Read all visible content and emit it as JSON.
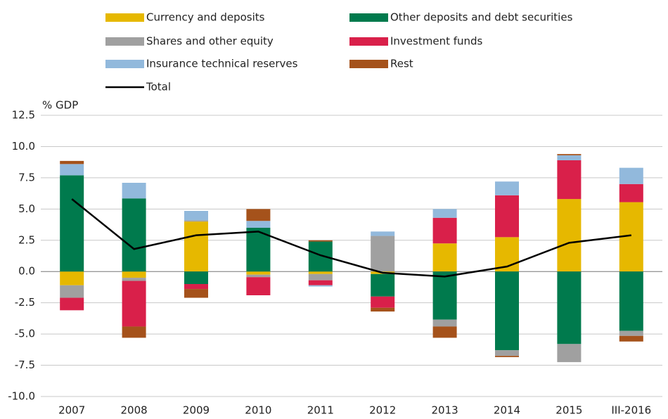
{
  "chart_data": {
    "type": "bar",
    "stacked": true,
    "y_label": "% GDP",
    "categories": [
      "2007",
      "2008",
      "2009",
      "2010",
      "2011",
      "2012",
      "2013",
      "2014",
      "2015",
      "III-2016"
    ],
    "series": [
      {
        "name": "Currency and deposits",
        "color": "#e6b800",
        "values": [
          -1.1,
          -0.5,
          4.0,
          -0.25,
          -0.2,
          -0.2,
          2.25,
          2.75,
          5.8,
          5.55
        ]
      },
      {
        "name": "Other deposits and debt securities",
        "color": "#007a4d",
        "values": [
          7.7,
          5.85,
          -1.0,
          3.5,
          2.4,
          -1.8,
          -3.85,
          -6.3,
          -5.8,
          -4.75
        ]
      },
      {
        "name": "Shares and other equity",
        "color": "#a0a0a0",
        "values": [
          -1.0,
          -0.25,
          0.1,
          -0.2,
          -0.5,
          2.85,
          -0.55,
          -0.45,
          -1.45,
          -0.4
        ]
      },
      {
        "name": "Investment funds",
        "color": "#d9204a",
        "values": [
          -1.0,
          -3.65,
          -0.4,
          -1.45,
          -0.4,
          -0.9,
          2.05,
          3.35,
          3.1,
          1.45
        ]
      },
      {
        "name": "Insurance technical reserves",
        "color": "#92b9dc",
        "values": [
          0.9,
          1.25,
          0.75,
          0.55,
          -0.1,
          0.35,
          0.7,
          1.1,
          0.4,
          1.3
        ]
      },
      {
        "name": "Rest",
        "color": "#a5521b",
        "values": [
          0.25,
          -0.9,
          -0.7,
          0.95,
          0.1,
          -0.3,
          -0.9,
          -0.1,
          0.1,
          -0.45
        ]
      },
      {
        "name": "Total",
        "type": "line",
        "color": "#000000",
        "values": [
          5.8,
          1.8,
          2.9,
          3.2,
          1.3,
          -0.1,
          -0.4,
          0.4,
          2.3,
          2.9
        ]
      }
    ],
    "ylim": [
      -10,
      12.5
    ],
    "yticks": [
      -10,
      -7.5,
      -5,
      -2.5,
      0,
      2.5,
      5,
      7.5,
      10,
      12.5
    ],
    "ytick_labels": null,
    "grid": true
  }
}
